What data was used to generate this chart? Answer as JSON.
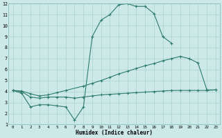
{
  "xlabel": "Humidex (Indice chaleur)",
  "bg_color": "#cce9e8",
  "grid_color": "#aad4d2",
  "line_color": "#2d7a6e",
  "xlim": [
    -0.5,
    23.5
  ],
  "ylim": [
    1,
    12
  ],
  "xticks": [
    0,
    1,
    2,
    3,
    4,
    5,
    6,
    7,
    8,
    9,
    10,
    11,
    12,
    13,
    14,
    15,
    16,
    17,
    18,
    19,
    20,
    21,
    22,
    23
  ],
  "yticks": [
    1,
    2,
    3,
    4,
    5,
    6,
    7,
    8,
    9,
    10,
    11,
    12
  ],
  "series1_x": [
    0,
    1,
    2,
    3,
    4,
    5,
    6,
    7,
    8,
    9,
    10,
    11,
    12,
    13,
    14,
    15,
    16,
    17,
    18,
    19,
    20,
    21,
    22,
    23
  ],
  "series1_y": [
    4.1,
    3.85,
    2.6,
    2.8,
    2.8,
    2.7,
    2.6,
    1.4,
    2.6,
    9.0,
    10.5,
    11.0,
    11.9,
    12.0,
    11.75,
    11.75,
    11.1,
    9.0,
    8.4,
    null,
    null,
    null,
    null,
    null
  ],
  "series2_x": [
    0,
    1,
    2,
    3,
    4,
    5,
    6,
    8,
    9,
    10,
    11,
    12,
    13,
    14,
    15,
    16,
    17,
    18,
    19,
    20,
    21,
    22,
    23
  ],
  "series2_y": [
    4.1,
    4.05,
    3.8,
    3.6,
    3.7,
    3.9,
    4.1,
    4.5,
    4.75,
    5.0,
    5.3,
    5.6,
    5.85,
    6.1,
    6.35,
    6.55,
    6.8,
    7.0,
    7.2,
    7.0,
    6.6,
    4.15,
    4.15
  ],
  "series3_x": [
    0,
    1,
    2,
    3,
    4,
    5,
    6,
    7,
    8,
    9,
    10,
    11,
    12,
    13,
    14,
    15,
    16,
    17,
    18,
    19,
    20,
    21,
    22,
    23
  ],
  "series3_y": [
    4.1,
    4.0,
    3.5,
    3.4,
    3.5,
    3.5,
    3.5,
    3.4,
    3.5,
    3.6,
    3.7,
    3.75,
    3.8,
    3.85,
    3.9,
    3.95,
    4.0,
    4.05,
    4.1,
    4.1,
    4.1,
    4.1,
    4.1,
    4.15
  ]
}
